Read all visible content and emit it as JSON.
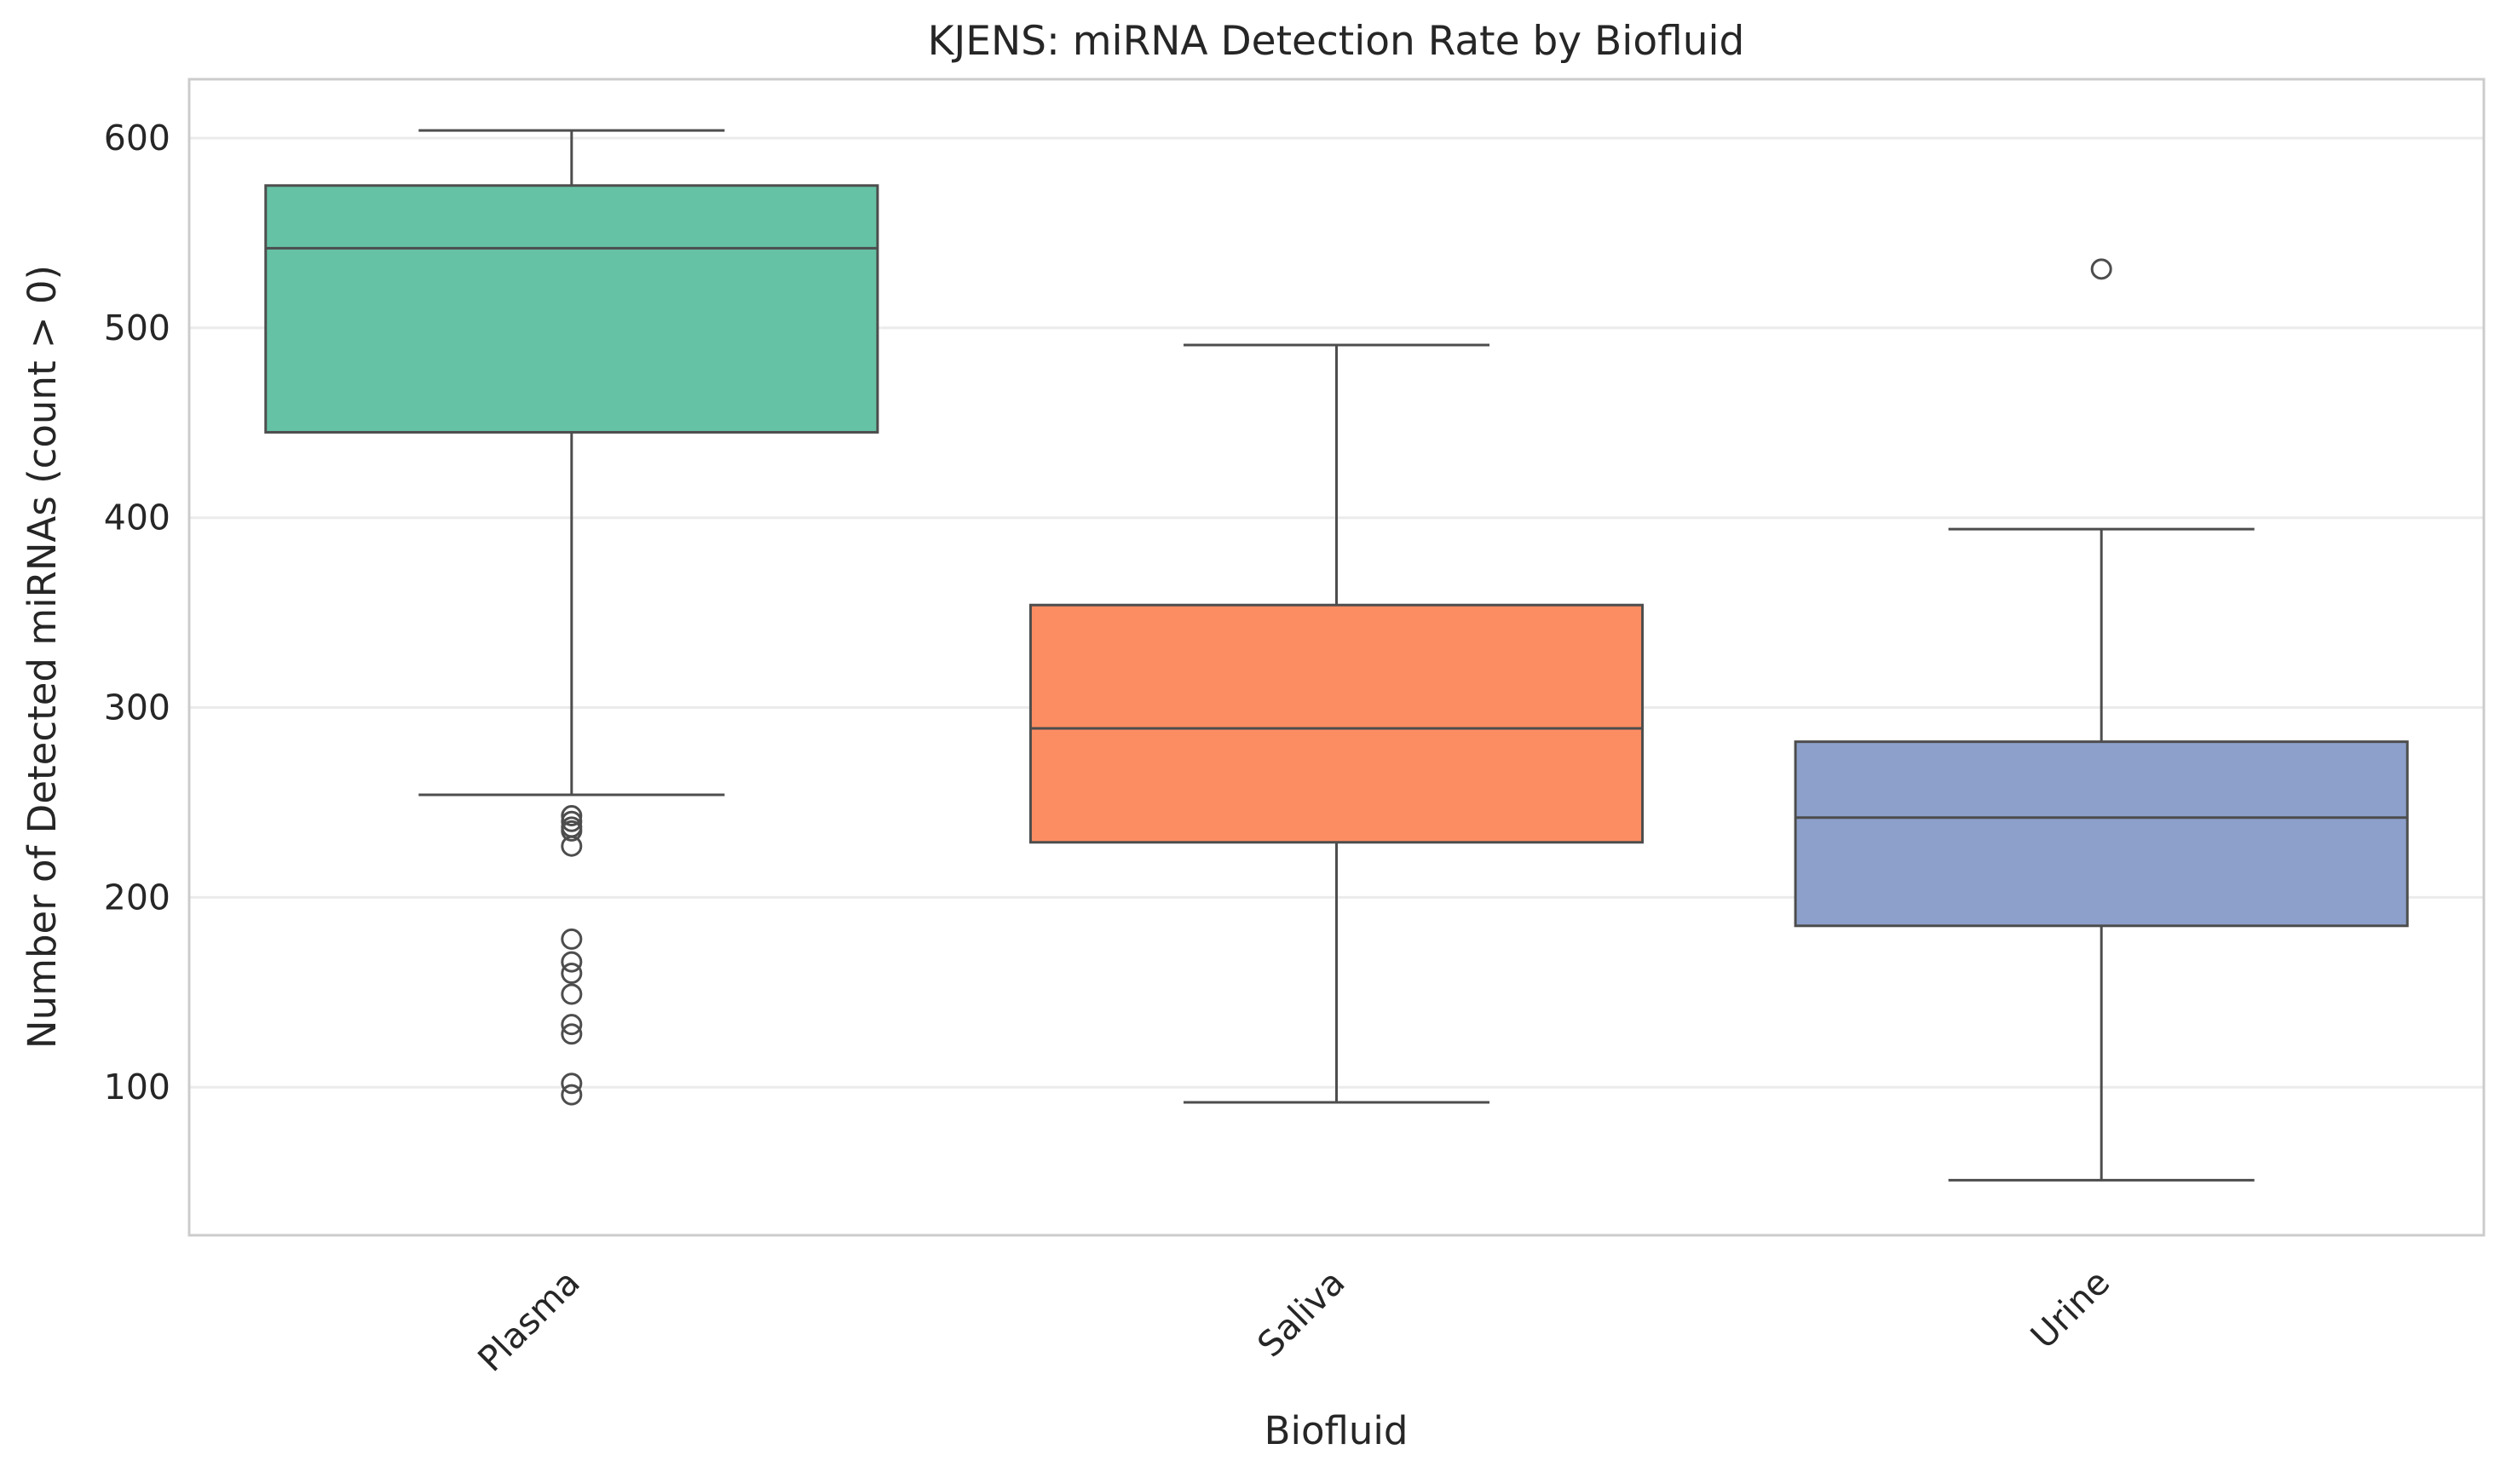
{
  "chart_data": {
    "type": "box",
    "title": "KJENS: miRNA Detection Rate by Biofluid",
    "xlabel": "Biofluid",
    "ylabel": "Number of Detected miRNAs (count > 0)",
    "ylim": [
      22,
      631
    ],
    "yticks": [
      100,
      200,
      300,
      400,
      500,
      600
    ],
    "grid": "horizontal",
    "categories": [
      "Plasma",
      "Saliva",
      "Urine"
    ],
    "boxes": [
      {
        "category": "Plasma",
        "color": "#66c2a5",
        "whisker_low": 254,
        "q1": 445,
        "median": 542,
        "q3": 575,
        "whisker_high": 604,
        "outliers": [
          243,
          240,
          237,
          235,
          227,
          178,
          166,
          160,
          149,
          133,
          128,
          102,
          96
        ]
      },
      {
        "category": "Saliva",
        "color": "#fc8d62",
        "whisker_low": 92,
        "q1": 229,
        "median": 289,
        "q3": 354,
        "whisker_high": 491,
        "outliers": []
      },
      {
        "category": "Urine",
        "color": "#8da0cb",
        "whisker_low": 51,
        "q1": 185,
        "median": 242,
        "q3": 282,
        "whisker_high": 394,
        "outliers": [
          531
        ]
      }
    ]
  }
}
